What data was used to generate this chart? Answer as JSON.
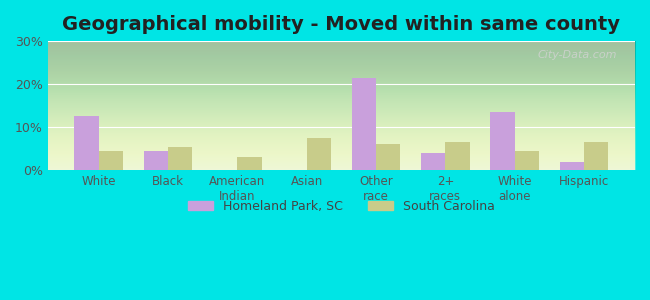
{
  "title": "Geographical mobility - Moved within same county",
  "categories": [
    "White",
    "Black",
    "American\nIndian",
    "Asian",
    "Other\nrace",
    "2+\nraces",
    "White\nalone",
    "Hispanic"
  ],
  "homeland_park": [
    12.5,
    4.5,
    0,
    0,
    21.5,
    4.0,
    13.5,
    2.0
  ],
  "south_carolina": [
    4.5,
    5.5,
    3.0,
    7.5,
    6.0,
    6.5,
    4.5,
    6.5
  ],
  "homeland_color": "#c9a0dc",
  "sc_color": "#c8cc8a",
  "ylim": [
    0,
    30
  ],
  "yticks": [
    0,
    10,
    20,
    30
  ],
  "ytick_labels": [
    "0%",
    "10%",
    "20%",
    "30%"
  ],
  "background_color": "#e8f5d0",
  "outer_background": "#00e5e5",
  "title_fontsize": 14,
  "watermark": "City-Data.com",
  "bar_width": 0.35,
  "legend_labels": [
    "Homeland Park, SC",
    "South Carolina"
  ]
}
